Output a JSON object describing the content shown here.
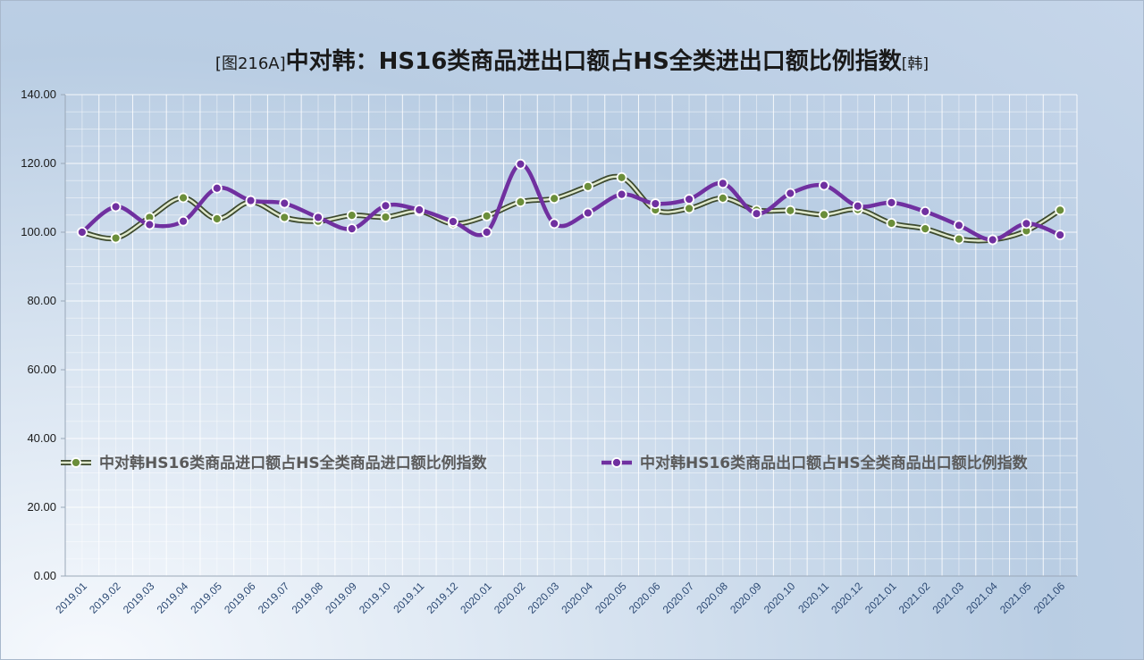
{
  "title": {
    "tag": "[图216A]",
    "main": "中对韩：HS16类商品进出口额占HS全类进出口额比例指数",
    "suffix": "[韩]"
  },
  "chart_data": {
    "type": "line",
    "categories": [
      "2019.01",
      "2019.02",
      "2019.03",
      "2019.04",
      "2019.05",
      "2019.06",
      "2019.07",
      "2019.08",
      "2019.09",
      "2019.10",
      "2019.11",
      "2019.12",
      "2020.01",
      "2020.02",
      "2020.03",
      "2020.04",
      "2020.05",
      "2020.06",
      "2020.07",
      "2020.08",
      "2020.09",
      "2020.10",
      "2020.11",
      "2020.12",
      "2021.01",
      "2021.02",
      "2021.03",
      "2021.04",
      "2021.05",
      "2021.06"
    ],
    "series": [
      {
        "name": "中对韩HS16类商品进口额占HS全类商品进口额比例指数",
        "color": "#6b8e3a",
        "values": [
          100.0,
          98.3,
          104.3,
          110.0,
          103.9,
          108.8,
          104.3,
          103.2,
          104.9,
          104.4,
          106.1,
          102.5,
          104.7,
          108.8,
          109.8,
          113.3,
          115.9,
          106.5,
          106.9,
          109.9,
          106.4,
          106.3,
          105.1,
          106.6,
          102.6,
          101.0,
          98.0,
          97.8,
          100.4,
          106.4
        ]
      },
      {
        "name": "中对韩HS16类商品出口额占HS全类商品出口额比例指数",
        "color": "#7030a0",
        "values": [
          100.0,
          107.4,
          102.2,
          103.2,
          112.8,
          109.2,
          108.4,
          104.3,
          101.0,
          107.7,
          106.5,
          103.1,
          100.0,
          119.8,
          102.5,
          105.6,
          111.0,
          108.3,
          109.6,
          114.2,
          105.4,
          111.3,
          113.6,
          107.6,
          108.6,
          106.0,
          102.0,
          97.8,
          102.5,
          99.2
        ]
      }
    ],
    "ylim": [
      0,
      140
    ],
    "yticks": [
      "0.00",
      "20.00",
      "40.00",
      "60.00",
      "80.00",
      "100.00",
      "120.00",
      "140.00"
    ],
    "grid": true,
    "legend_placement": "center-left"
  }
}
